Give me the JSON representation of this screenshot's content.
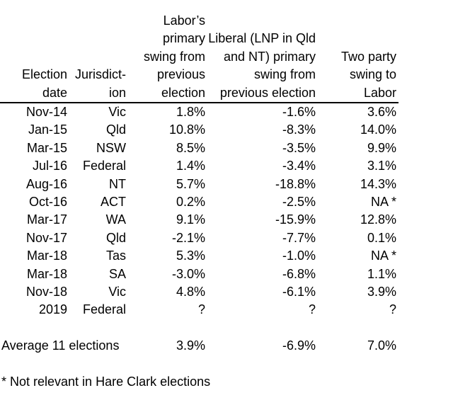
{
  "chart_data": {
    "type": "table",
    "title": "",
    "columns": [
      "Election date",
      "Jurisdiction",
      "Labor’s primary swing from previous election",
      "Liberal (LNP in Qld and NT) primary swing from previous election",
      "Two party swing to Labor"
    ],
    "header_display": [
      "Election\ndate",
      "Jurisdict-\nion",
      "Labor’s\nprimary\nswing from\nprevious\nelection",
      "Liberal (LNP in Qld\nand NT) primary\nswing from\nprevious election",
      "Two party\nswing to\nLabor"
    ],
    "rows": [
      [
        "Nov-14",
        "Vic",
        "1.8%",
        "-1.6%",
        "3.6%"
      ],
      [
        "Jan-15",
        "Qld",
        "10.8%",
        "-8.3%",
        "14.0%"
      ],
      [
        "Mar-15",
        "NSW",
        "8.5%",
        "-3.5%",
        "9.9%"
      ],
      [
        "Jul-16",
        "Federal",
        "1.4%",
        "-3.4%",
        "3.1%"
      ],
      [
        "Aug-16",
        "NT",
        "5.7%",
        "-18.8%",
        "14.3%"
      ],
      [
        "Oct-16",
        "ACT",
        "0.2%",
        "-2.5%",
        "NA *"
      ],
      [
        "Mar-17",
        "WA",
        "9.1%",
        "-15.9%",
        "12.8%"
      ],
      [
        "Nov-17",
        "Qld",
        "-2.1%",
        "-7.7%",
        "0.1%"
      ],
      [
        "Mar-18",
        "Tas",
        "5.3%",
        "-1.0%",
        "NA *"
      ],
      [
        "Mar-18",
        "SA",
        "-3.0%",
        "-6.8%",
        "1.1%"
      ],
      [
        "Nov-18",
        "Vic",
        "4.8%",
        "-6.1%",
        "3.9%"
      ],
      [
        "2019",
        "Federal",
        "?",
        "?",
        "?"
      ]
    ],
    "summary": {
      "label": "Average 11 elections",
      "values": [
        "3.9%",
        "-6.9%",
        "7.0%"
      ]
    },
    "footnote": "* Not relevant in Hare Clark elections",
    "layout": {
      "text_color": "#000000",
      "background_color": "#ffffff",
      "header_rule_color": "#000000"
    }
  }
}
